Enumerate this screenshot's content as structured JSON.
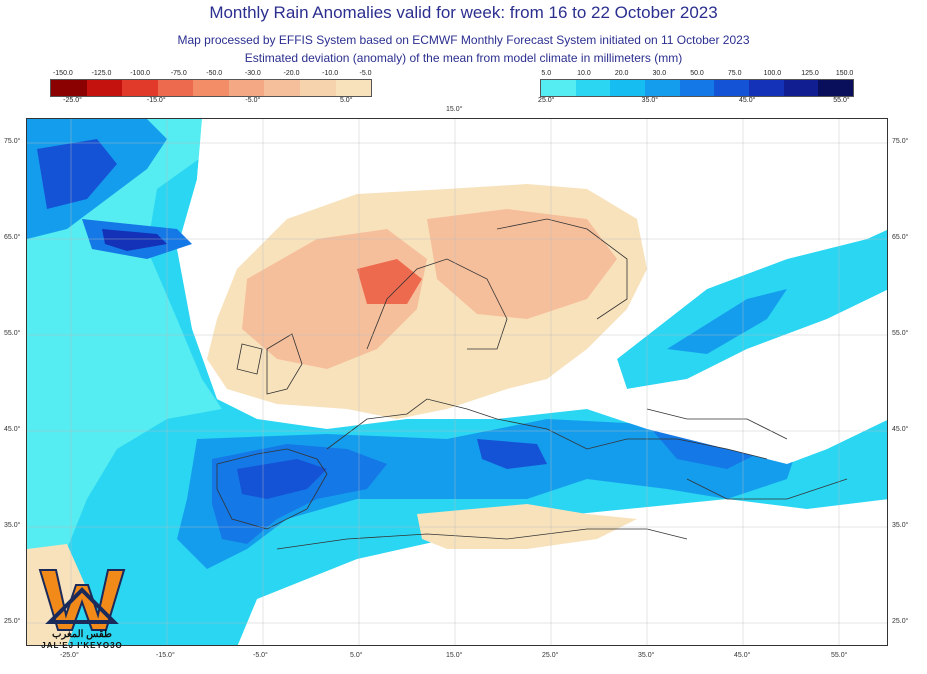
{
  "title": "Monthly Rain Anomalies valid for week: from 16 to 22 October 2023",
  "subtitle_1": "Map processed by EFFIS System based on ECMWF Monthly Forecast System initiated on 11 October 2023",
  "subtitle_2": "Estimated deviation (anomaly) of the mean from model climate in millimeters (mm)",
  "dry_scale": {
    "values": [
      "-150.0",
      "-125.0",
      "-100.0",
      "-75.0",
      "-50.0",
      "-30.0",
      "-20.0",
      "-10.0",
      "-5.0"
    ],
    "colors": [
      "#8b0000",
      "#c4120f",
      "#e23a2a",
      "#ee6a4e",
      "#f28d68",
      "#f4a884",
      "#f6bf9b",
      "#f7d3ad",
      "#f8e2bc"
    ],
    "axis": [
      "-25.0°",
      "-15.0°",
      "-5.0°",
      "5.0°",
      "15.0°"
    ]
  },
  "wet_scale": {
    "values": [
      "5.0",
      "10.0",
      "20.0",
      "30.0",
      "50.0",
      "75.0",
      "100.0",
      "125.0",
      "150.0"
    ],
    "colors": [
      "#55ecf2",
      "#2ad6f2",
      "#16bdf0",
      "#159ded",
      "#1478e6",
      "#1553d6",
      "#1332b8",
      "#101e91",
      "#0a0f5c"
    ],
    "axis": [
      "25.0°",
      "35.0°",
      "45.0°",
      "55.0°"
    ]
  },
  "lat_labels": [
    "75.0°",
    "65.0°",
    "55.0°",
    "45.0°",
    "35.0°",
    "25.0°"
  ],
  "lon_labels": [
    "-25.0°",
    "-15.0°",
    "-5.0°",
    "5.0°",
    "15.0°",
    "25.0°",
    "35.0°",
    "45.0°",
    "55.0°"
  ],
  "logo": {
    "arabic": "طقس المغرب",
    "latin": "JAL'EJ I'KEYO3O"
  },
  "colors": {
    "ocean_wet": "#2ad6f2",
    "ocean_wet_light": "#55ecf2",
    "wet_mid": "#159ded",
    "wet_dark": "#1553d6",
    "dry_light": "#f8e2bc",
    "dry_mid": "#f6bf9b",
    "dry_dark": "#ee6a4e",
    "title": "#2b2f8f"
  }
}
